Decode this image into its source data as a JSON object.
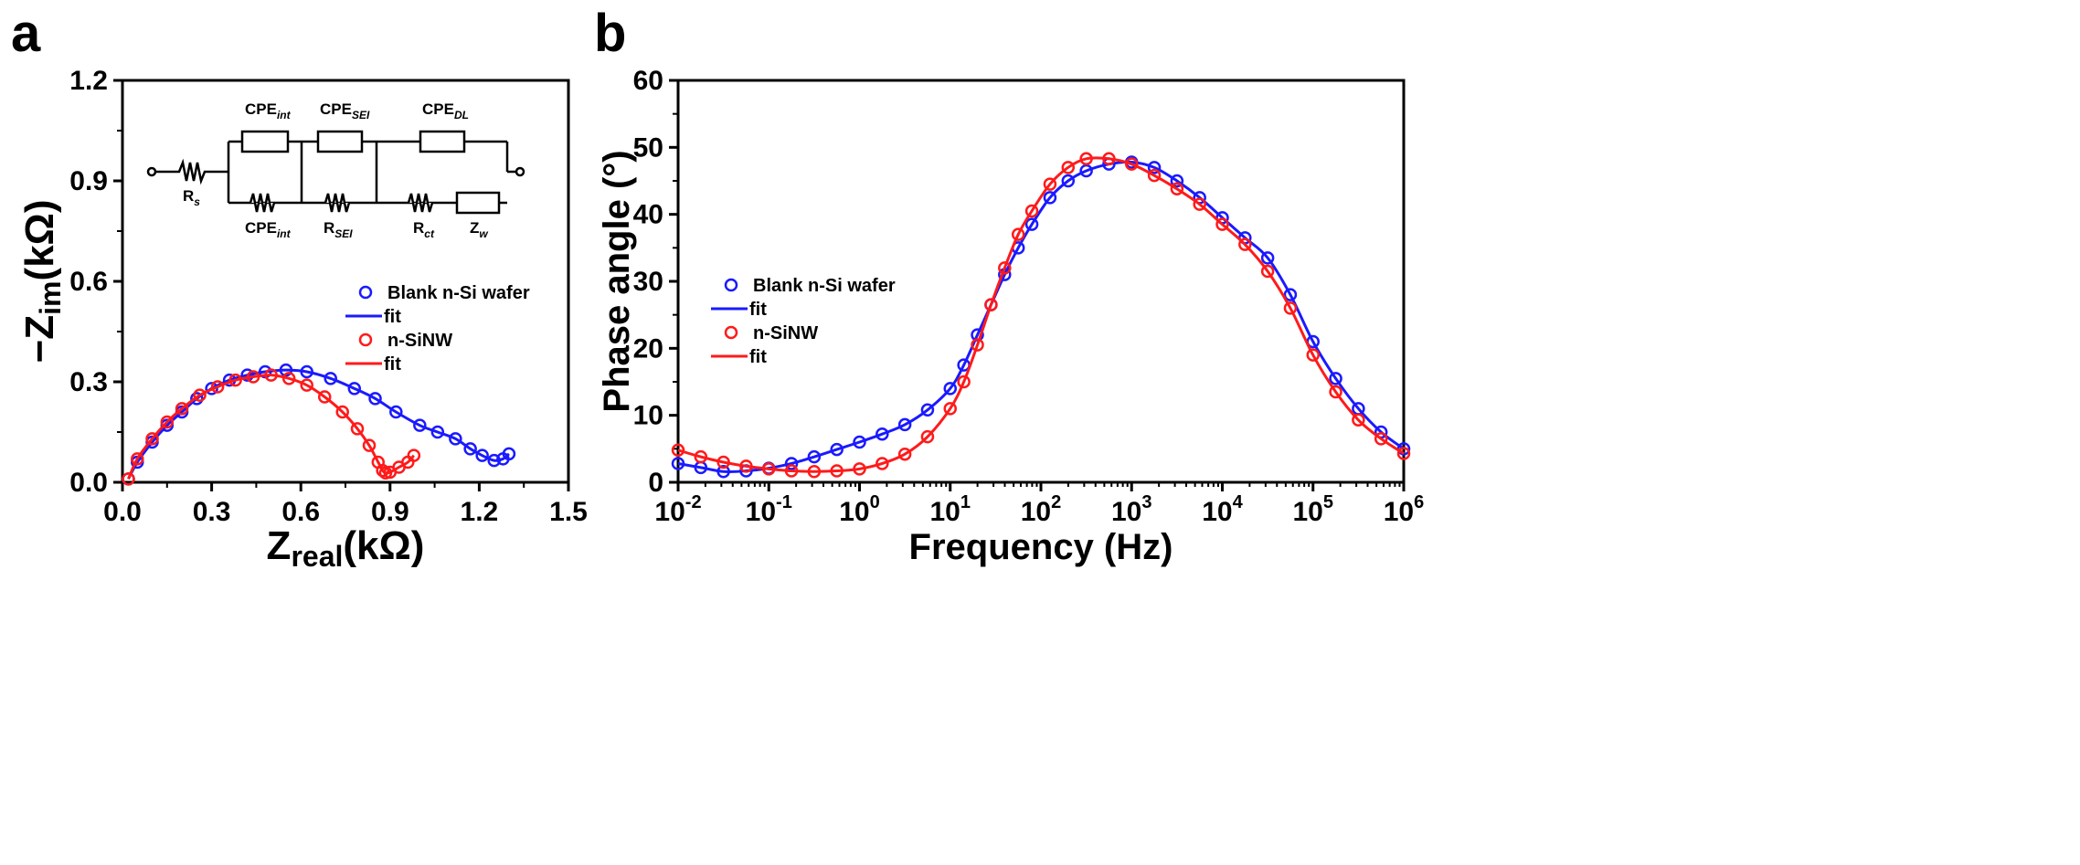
{
  "chart_data": [
    {
      "panel_label": "a",
      "type": "scatter",
      "xlabel": {
        "main": "Z",
        "sub": "real",
        "unit": "(kΩ)"
      },
      "ylabel": {
        "prefix": "−Z",
        "sub": "im",
        "unit": "(kΩ)"
      },
      "xlim": [
        0,
        1.5
      ],
      "ylim": [
        0,
        1.2
      ],
      "xticks": [
        "0.0",
        "0.3",
        "0.6",
        "0.9",
        "1.2",
        "1.5"
      ],
      "yticks": [
        "0.0",
        "0.3",
        "0.6",
        "0.9",
        "1.2"
      ],
      "legend": {
        "placement": "center-right",
        "entries": [
          "Blank n-Si wafer",
          "fit",
          "n-SiNW",
          "fit"
        ]
      },
      "series": [
        {
          "name": "Blank n-Si wafer",
          "color": "#1a1aff",
          "x": [
            0.02,
            0.05,
            0.1,
            0.15,
            0.2,
            0.25,
            0.3,
            0.36,
            0.42,
            0.48,
            0.55,
            0.62,
            0.7,
            0.78,
            0.85,
            0.92,
            1.0,
            1.06,
            1.12,
            1.17,
            1.21,
            1.25,
            1.28,
            1.3
          ],
          "y": [
            0.01,
            0.06,
            0.12,
            0.17,
            0.21,
            0.25,
            0.28,
            0.305,
            0.32,
            0.33,
            0.335,
            0.33,
            0.31,
            0.28,
            0.25,
            0.21,
            0.17,
            0.15,
            0.13,
            0.1,
            0.08,
            0.065,
            0.07,
            0.085
          ]
        },
        {
          "name": "n-SiNW",
          "color": "#ff1a1a",
          "x": [
            0.02,
            0.05,
            0.1,
            0.15,
            0.2,
            0.26,
            0.32,
            0.38,
            0.44,
            0.5,
            0.56,
            0.62,
            0.68,
            0.74,
            0.79,
            0.83,
            0.86,
            0.875,
            0.885,
            0.9,
            0.93,
            0.96,
            0.98
          ],
          "y": [
            0.01,
            0.07,
            0.13,
            0.18,
            0.22,
            0.26,
            0.285,
            0.305,
            0.315,
            0.32,
            0.31,
            0.29,
            0.255,
            0.21,
            0.16,
            0.11,
            0.06,
            0.035,
            0.028,
            0.03,
            0.045,
            0.06,
            0.08
          ]
        }
      ],
      "inset_circuit": {
        "labels": {
          "cpe_int_top": {
            "base": "CPE",
            "sub": "int"
          },
          "cpe_sei": {
            "base": "CPE",
            "sub": "SEI"
          },
          "cpe_dl": {
            "base": "CPE",
            "sub": "DL"
          },
          "rs": {
            "base": "R",
            "sub": "s"
          },
          "cpe_int_bottom": {
            "base": "CPE",
            "sub": "int"
          },
          "r_sei": {
            "base": "R",
            "sub": "SEI"
          },
          "r_ct": {
            "base": "R",
            "sub": "ct"
          },
          "zw": {
            "base": "Z",
            "sub": "w"
          }
        }
      }
    },
    {
      "panel_label": "b",
      "type": "scatter",
      "xlabel": "Frequency (Hz)",
      "ylabel": "Phase angle (°)",
      "xscale": "log",
      "xlim": [
        0.01,
        1000000
      ],
      "ylim": [
        0,
        60
      ],
      "xticks": [
        {
          "base": "10",
          "exp": "-2"
        },
        {
          "base": "10",
          "exp": "-1"
        },
        {
          "base": "10",
          "exp": "0"
        },
        {
          "base": "10",
          "exp": "1"
        },
        {
          "base": "10",
          "exp": "2"
        },
        {
          "base": "10",
          "exp": "3"
        },
        {
          "base": "10",
          "exp": "4"
        },
        {
          "base": "10",
          "exp": "5"
        },
        {
          "base": "10",
          "exp": "6"
        }
      ],
      "yticks": [
        "0",
        "10",
        "20",
        "30",
        "40",
        "50",
        "60"
      ],
      "legend": {
        "placement": "center-left",
        "entries": [
          "Blank n-Si wafer",
          "fit",
          "n-SiNW",
          "fit"
        ]
      },
      "series": [
        {
          "name": "Blank n-Si wafer",
          "color": "#1a1aff",
          "log10_x": [
            -2,
            -1.75,
            -1.5,
            -1.25,
            -1,
            -0.75,
            -0.5,
            -0.25,
            0,
            0.25,
            0.5,
            0.75,
            1,
            1.15,
            1.3,
            1.45,
            1.6,
            1.75,
            1.9,
            2.1,
            2.3,
            2.5,
            2.75,
            3,
            3.25,
            3.5,
            3.75,
            4,
            4.25,
            4.5,
            4.75,
            5,
            5.25,
            5.5,
            5.75,
            6
          ],
          "y": [
            2.8,
            2.2,
            1.6,
            1.7,
            2.1,
            2.8,
            3.8,
            4.9,
            6.0,
            7.2,
            8.6,
            10.8,
            14,
            17.5,
            22,
            26.5,
            31,
            35,
            38.5,
            42.5,
            45,
            46.5,
            47.5,
            47.8,
            47,
            45,
            42.5,
            39.5,
            36.5,
            33.5,
            28,
            21,
            15.5,
            11,
            7.5,
            5
          ]
        },
        {
          "name": "n-SiNW",
          "color": "#ff1a1a",
          "log10_x": [
            -2,
            -1.75,
            -1.5,
            -1.25,
            -1,
            -0.75,
            -0.5,
            -0.25,
            0,
            0.25,
            0.5,
            0.75,
            1,
            1.15,
            1.3,
            1.45,
            1.6,
            1.75,
            1.9,
            2.1,
            2.3,
            2.5,
            2.75,
            3,
            3.25,
            3.5,
            3.75,
            4,
            4.25,
            4.5,
            4.75,
            5,
            5.25,
            5.5,
            5.75,
            6
          ],
          "y": [
            4.8,
            3.8,
            3.0,
            2.4,
            2.0,
            1.7,
            1.6,
            1.7,
            2.0,
            2.8,
            4.2,
            6.8,
            11,
            15,
            20.5,
            26.5,
            32,
            37,
            40.5,
            44.5,
            47,
            48.3,
            48.3,
            47.5,
            45.8,
            43.8,
            41.5,
            38.5,
            35.5,
            31.5,
            26,
            19,
            13.5,
            9.3,
            6.5,
            4.3
          ]
        }
      ]
    }
  ]
}
